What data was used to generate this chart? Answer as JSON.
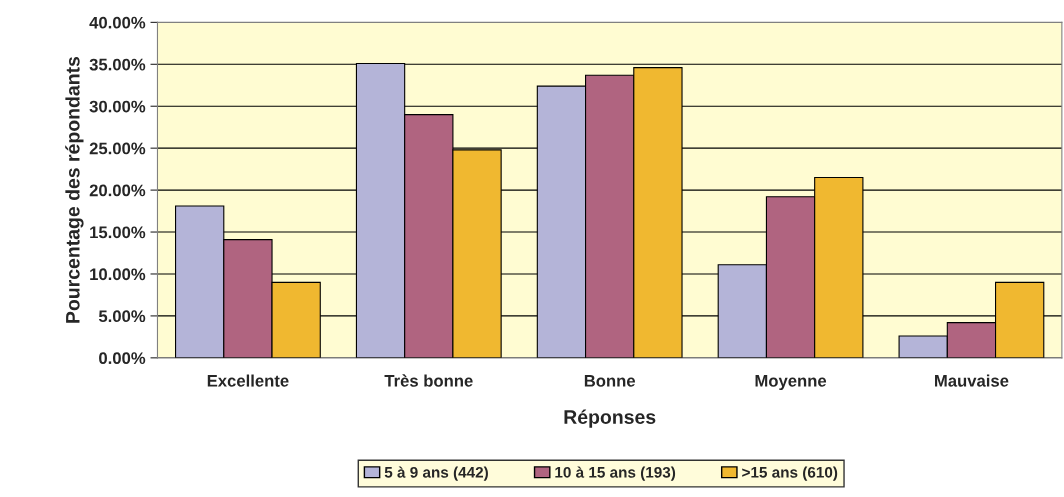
{
  "chart_data": {
    "type": "bar",
    "xlabel": "Réponses",
    "ylabel": "Pourcentage des répondants",
    "categories": [
      "Excellente",
      "Très bonne",
      "Bonne",
      "Moyenne",
      "Mauvaise"
    ],
    "series": [
      {
        "name": "5 à 9 ans (442)",
        "color": "#b4b4d8",
        "values": [
          18.1,
          35.1,
          32.4,
          11.1,
          2.6
        ]
      },
      {
        "name": "10 à 15 ans (193)",
        "color": "#b06480",
        "values": [
          14.1,
          29.0,
          33.7,
          19.2,
          4.2
        ]
      },
      {
        "name": ">15 ans (610)",
        "color": "#f0b830",
        "values": [
          9.0,
          24.8,
          34.6,
          21.5,
          9.0
        ]
      }
    ],
    "ylim": [
      0,
      40
    ],
    "yticks": [
      {
        "value": 0,
        "label": "0.00%"
      },
      {
        "value": 5,
        "label": "5.00%"
      },
      {
        "value": 10,
        "label": "10.00%"
      },
      {
        "value": 15,
        "label": "15.00%"
      },
      {
        "value": 20,
        "label": "20.00%"
      },
      {
        "value": 25,
        "label": "25.00%"
      },
      {
        "value": 30,
        "label": "30.00%"
      },
      {
        "value": 35,
        "label": "35.00%"
      },
      {
        "value": 40,
        "label": "40.00%"
      }
    ],
    "grid": "y",
    "legend": "bottom"
  }
}
